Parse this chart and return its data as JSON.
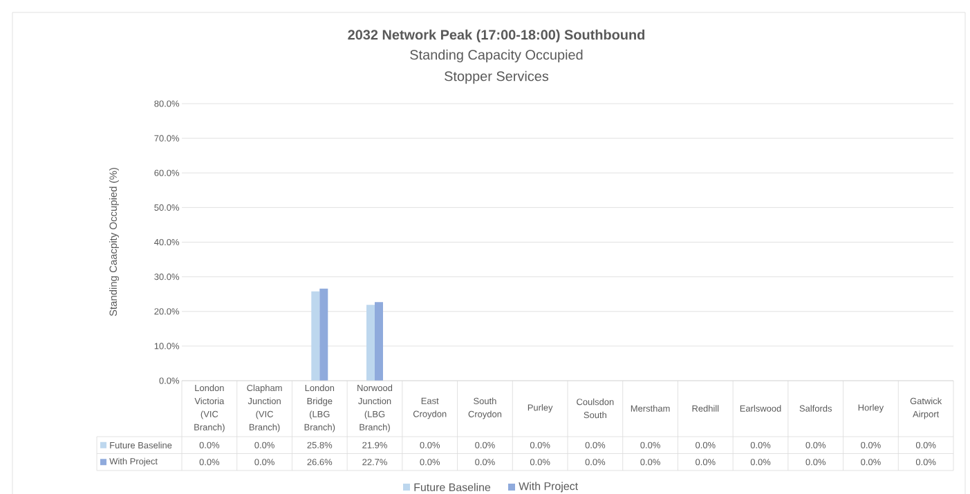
{
  "chart_data": {
    "type": "bar",
    "title": "2032 Network Peak (17:00-18:00) Southbound",
    "subtitle": "Standing Capacity Occupied",
    "annotations": [
      "Stopper Services"
    ],
    "ylabel": "Standing Caacpity Occupied (%)",
    "categories": [
      "London Victoria (VIC Branch)",
      "Clapham Junction (VIC Branch)",
      "London Bridge (LBG Branch)",
      "Norwood Junction (LBG Branch)",
      "East Croydon",
      "South Croydon",
      "Purley",
      "Coulsdon South",
      "Merstham",
      "Redhill",
      "Earlswood",
      "Salfords",
      "Horley",
      "Gatwick Airport"
    ],
    "series": [
      {
        "name": "Future Baseline",
        "color": "#bdd7ee",
        "values": [
          0.0,
          0.0,
          25.8,
          21.9,
          0.0,
          0.0,
          0.0,
          0.0,
          0.0,
          0.0,
          0.0,
          0.0,
          0.0,
          0.0
        ],
        "value_labels": [
          "0.0%",
          "0.0%",
          "25.8%",
          "21.9%",
          "0.0%",
          "0.0%",
          "0.0%",
          "0.0%",
          "0.0%",
          "0.0%",
          "0.0%",
          "0.0%",
          "0.0%",
          "0.0%"
        ]
      },
      {
        "name": "With Project",
        "color": "#8faadc",
        "values": [
          0.0,
          0.0,
          26.6,
          22.7,
          0.0,
          0.0,
          0.0,
          0.0,
          0.0,
          0.0,
          0.0,
          0.0,
          0.0,
          0.0
        ],
        "value_labels": [
          "0.0%",
          "0.0%",
          "26.6%",
          "22.7%",
          "0.0%",
          "0.0%",
          "0.0%",
          "0.0%",
          "0.0%",
          "0.0%",
          "0.0%",
          "0.0%",
          "0.0%",
          "0.0%"
        ]
      }
    ],
    "ylim": [
      0,
      80
    ],
    "yticks": [
      {
        "value": 0,
        "label": "0.0%"
      },
      {
        "value": 10,
        "label": "10.0%"
      },
      {
        "value": 20,
        "label": "20.0%"
      },
      {
        "value": 30,
        "label": "30.0%"
      },
      {
        "value": 40,
        "label": "40.0%"
      },
      {
        "value": 50,
        "label": "50.0%"
      },
      {
        "value": 60,
        "label": "60.0%"
      },
      {
        "value": 70,
        "label": "70.0%"
      },
      {
        "value": 80,
        "label": "80.0%"
      }
    ],
    "grid": "y",
    "legend": "bottom"
  }
}
